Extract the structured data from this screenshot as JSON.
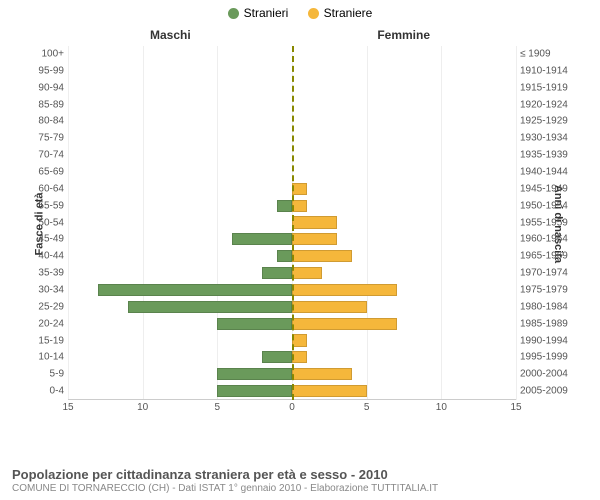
{
  "legend": {
    "male": {
      "label": "Stranieri",
      "color": "#6a9a5b"
    },
    "female": {
      "label": "Straniere",
      "color": "#f5b73b"
    }
  },
  "column_titles": {
    "left": "Maschi",
    "right": "Femmine"
  },
  "y_axis": {
    "left_label": "Fasce di età",
    "right_label": "Anni di nascita"
  },
  "x_axis": {
    "max": 15,
    "ticks_left": [
      15,
      10,
      5,
      0
    ],
    "ticks_right": [
      0,
      5,
      10,
      15
    ]
  },
  "chart": {
    "type": "population-pyramid",
    "background_color": "#ffffff",
    "grid_color": "#eeeeee",
    "male_color": "#6a9a5b",
    "female_color": "#f5b73b",
    "rows": [
      {
        "age": "100+",
        "birth": "≤ 1909",
        "m": 0,
        "f": 0
      },
      {
        "age": "95-99",
        "birth": "1910-1914",
        "m": 0,
        "f": 0
      },
      {
        "age": "90-94",
        "birth": "1915-1919",
        "m": 0,
        "f": 0
      },
      {
        "age": "85-89",
        "birth": "1920-1924",
        "m": 0,
        "f": 0
      },
      {
        "age": "80-84",
        "birth": "1925-1929",
        "m": 0,
        "f": 0
      },
      {
        "age": "75-79",
        "birth": "1930-1934",
        "m": 0,
        "f": 0
      },
      {
        "age": "70-74",
        "birth": "1935-1939",
        "m": 0,
        "f": 0
      },
      {
        "age": "65-69",
        "birth": "1940-1944",
        "m": 0,
        "f": 0
      },
      {
        "age": "60-64",
        "birth": "1945-1949",
        "m": 0,
        "f": 1
      },
      {
        "age": "55-59",
        "birth": "1950-1954",
        "m": 1,
        "f": 1
      },
      {
        "age": "50-54",
        "birth": "1955-1959",
        "m": 0,
        "f": 3
      },
      {
        "age": "45-49",
        "birth": "1960-1964",
        "m": 4,
        "f": 3
      },
      {
        "age": "40-44",
        "birth": "1965-1969",
        "m": 1,
        "f": 4
      },
      {
        "age": "35-39",
        "birth": "1970-1974",
        "m": 2,
        "f": 2
      },
      {
        "age": "30-34",
        "birth": "1975-1979",
        "m": 13,
        "f": 7
      },
      {
        "age": "25-29",
        "birth": "1980-1984",
        "m": 11,
        "f": 5
      },
      {
        "age": "20-24",
        "birth": "1985-1989",
        "m": 5,
        "f": 7
      },
      {
        "age": "15-19",
        "birth": "1990-1994",
        "m": 0,
        "f": 1
      },
      {
        "age": "10-14",
        "birth": "1995-1999",
        "m": 2,
        "f": 1
      },
      {
        "age": "5-9",
        "birth": "2000-2004",
        "m": 5,
        "f": 4
      },
      {
        "age": "0-4",
        "birth": "2005-2009",
        "m": 5,
        "f": 5
      }
    ]
  },
  "footer": {
    "title": "Popolazione per cittadinanza straniera per età e sesso - 2010",
    "subtitle": "COMUNE DI TORNARECCIO (CH) - Dati ISTAT 1° gennaio 2010 - Elaborazione TUTTITALIA.IT"
  }
}
